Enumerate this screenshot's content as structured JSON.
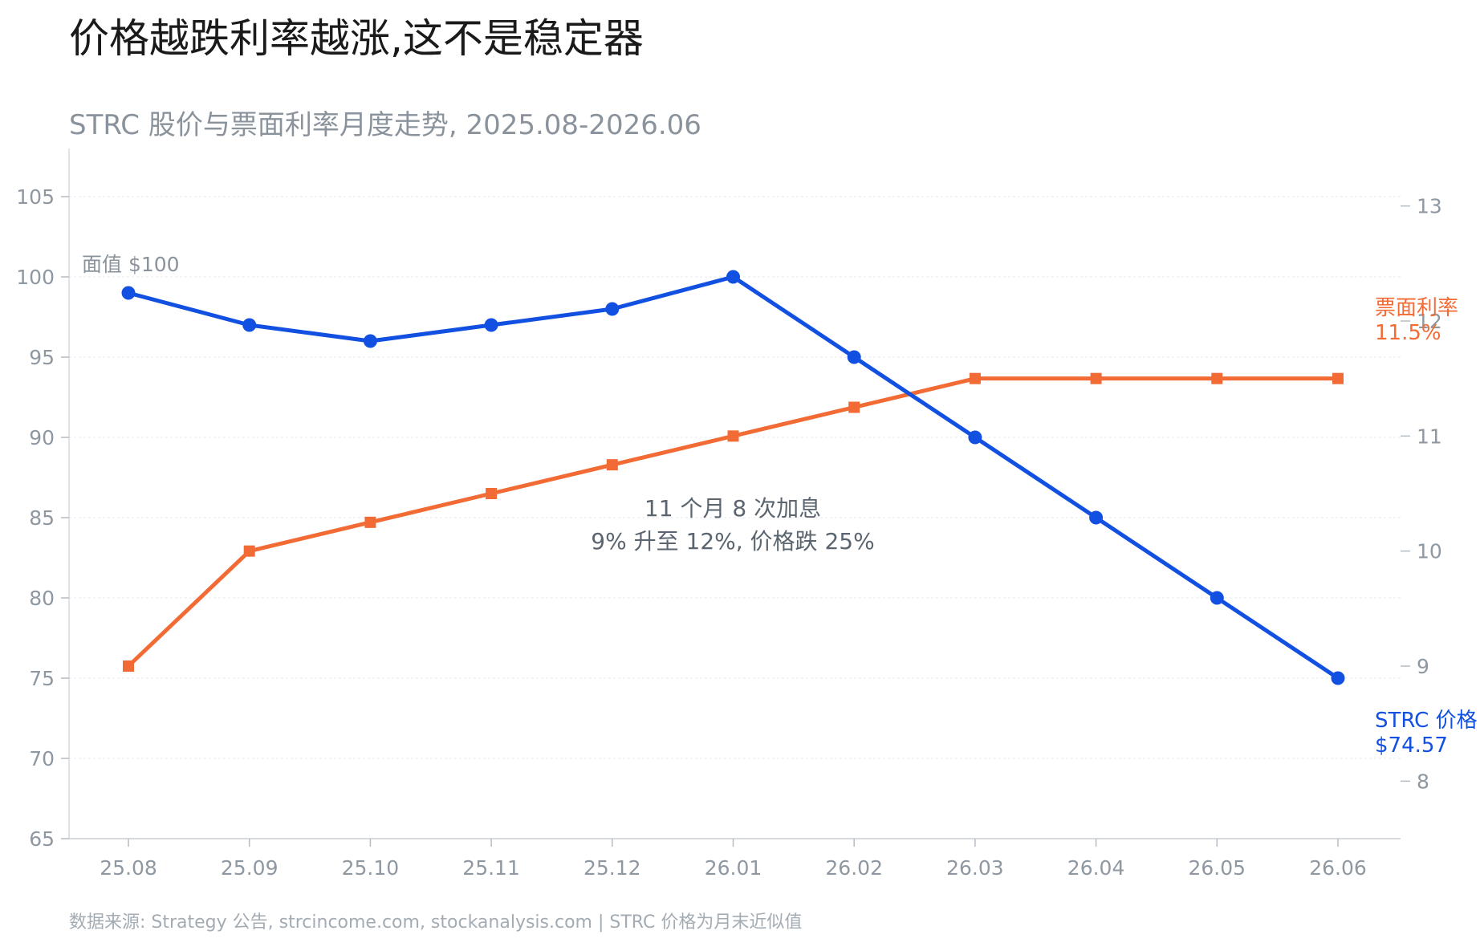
{
  "header": {
    "title": "价格越跌利率越涨,这不是稳定器",
    "subtitle": "STRC 股价与票面利率月度走势, 2025.08-2026.06"
  },
  "footer": {
    "source": "数据来源: Strategy 公告, strcincome.com, stockanalysis.com | STRC 价格为月末近似值"
  },
  "chart_data": {
    "type": "line",
    "categories": [
      "25.08",
      "25.09",
      "25.10",
      "25.11",
      "25.12",
      "26.01",
      "26.02",
      "26.03",
      "26.04",
      "26.05",
      "26.06"
    ],
    "y_left": {
      "ylim": [
        65,
        108
      ],
      "ticks": [
        65,
        70,
        75,
        80,
        85,
        90,
        95,
        100,
        105
      ]
    },
    "y_right": {
      "ylim": [
        7.5,
        13.5
      ],
      "ticks": [
        8,
        9,
        10,
        11,
        12,
        13
      ]
    },
    "grid": true,
    "series": [
      {
        "name": "STRC 价格",
        "axis": "left",
        "color": "#1150e0",
        "marker": "circle",
        "values": [
          99,
          97,
          96,
          97,
          98,
          100,
          95,
          90,
          85,
          80,
          75
        ],
        "end_label": "STRC 价格",
        "end_value_label": "$74.57"
      },
      {
        "name": "票面利率",
        "axis": "right",
        "color": "#f26b35",
        "marker": "square",
        "values": [
          9.0,
          10.0,
          10.25,
          10.5,
          10.75,
          11.0,
          11.25,
          11.5,
          11.5,
          11.5,
          11.5
        ],
        "end_label": "票面利率",
        "end_value_label": "11.5%"
      }
    ],
    "annotations": {
      "par_label": "面值 $100",
      "note_line1": "11 个月 8 次加息",
      "note_line2": "9% 升至 12%, 价格跌 25%"
    }
  }
}
